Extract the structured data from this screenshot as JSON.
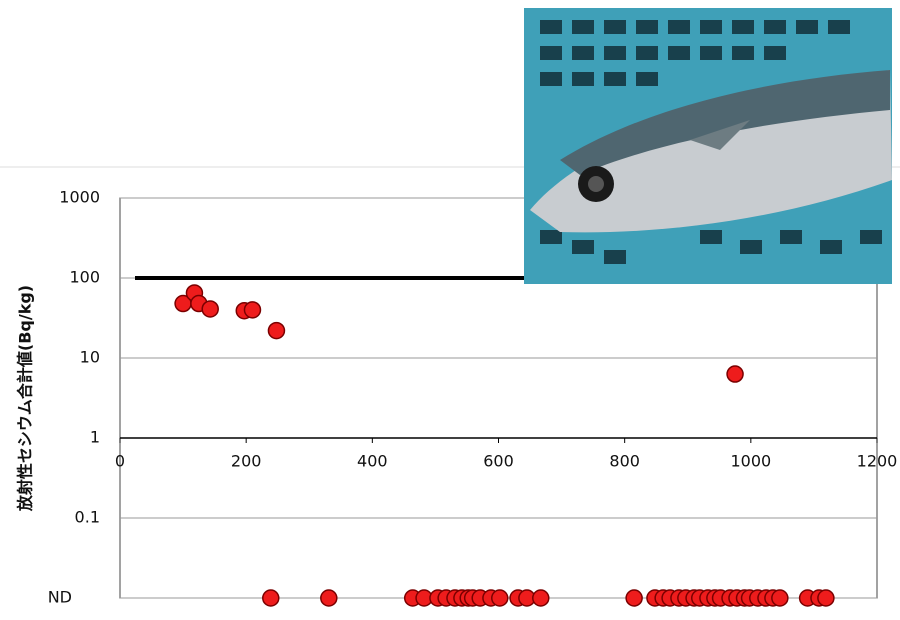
{
  "chart_data": {
    "type": "scatter",
    "y_label": "放射性セシウム合計値(Bq/kg)",
    "log_y": true,
    "grid": true,
    "xlim": [
      0,
      1200
    ],
    "xticks": [
      0,
      200,
      400,
      600,
      800,
      1000,
      1200
    ],
    "ylim": [
      0.01,
      1000
    ],
    "yticks": [
      1000,
      100,
      10,
      1,
      0.1,
      {
        "value": 0.01,
        "label": "ND"
      }
    ],
    "reference_line": 100,
    "series": [
      {
        "color": "#ee1c1c",
        "x": [
          100,
          118,
          125,
          143,
          197,
          210,
          248,
          975
        ],
        "values": [
          48,
          65,
          48,
          41,
          39,
          40,
          22,
          6.3
        ]
      },
      {
        "color": "#ee1c1c",
        "x": [
          239,
          331,
          464,
          482,
          504,
          517,
          531,
          542,
          552,
          559,
          571,
          588,
          602,
          631,
          645,
          667,
          815,
          848,
          861,
          872,
          886,
          897,
          910,
          919,
          932,
          943,
          952,
          967,
          978,
          990,
          998,
          1011,
          1024,
          1035,
          1046,
          1090,
          1108,
          1119
        ],
        "values": [
          0.01,
          0.01,
          0.01,
          0.01,
          0.01,
          0.01,
          0.01,
          0.01,
          0.01,
          0.01,
          0.01,
          0.01,
          0.01,
          0.01,
          0.01,
          0.01,
          0.01,
          0.01,
          0.01,
          0.01,
          0.01,
          0.01,
          0.01,
          0.01,
          0.01,
          0.01,
          0.01,
          0.01,
          0.01,
          0.01,
          0.01,
          0.01,
          0.01,
          0.01,
          0.01,
          0.01,
          0.01,
          0.01
        ]
      }
    ]
  }
}
